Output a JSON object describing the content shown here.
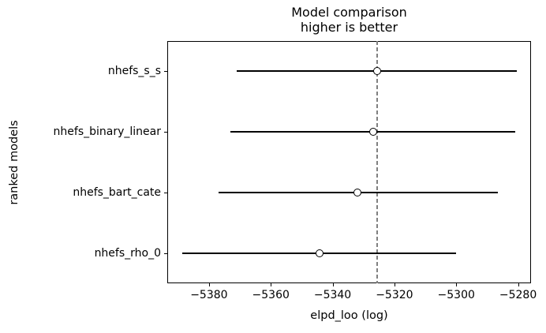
{
  "chart_data": {
    "type": "scatter",
    "subtype": "horizontal_errorbar_forest_plot",
    "title": "Model comparison",
    "subtitle": "higher is better",
    "xlabel": "elpd_loo (log)",
    "ylabel": "ranked models",
    "categories": [
      "nhefs_s_s",
      "nhefs_binary_linear",
      "nhefs_bart_cate",
      "nhefs_rho_0"
    ],
    "series": [
      {
        "name": "elpd_loo",
        "values": [
          -5325.6,
          -5326.9,
          -5332.0,
          -5344.3
        ],
        "error_lower": [
          -5371.1,
          -5373.1,
          -5376.9,
          -5388.7
        ],
        "error_upper": [
          -5280.4,
          -5280.9,
          -5286.6,
          -5300.1
        ]
      }
    ],
    "xlim": [
      -5393.5,
      -5275.8
    ],
    "x_ticks": [
      -5380,
      -5360,
      -5340,
      -5320,
      -5300,
      -5280
    ],
    "x_tick_labels": [
      "−5380",
      "−5360",
      "−5340",
      "−5320",
      "−5300",
      "−5280"
    ],
    "reference_line": {
      "x": -5325.6,
      "style": "dashed",
      "color": "#808080"
    },
    "grid": false,
    "legend": false,
    "colors": {
      "errorbar": "#000000",
      "marker_fill": "#ffffff",
      "marker_edge": "#000000",
      "text": "#000000"
    }
  }
}
